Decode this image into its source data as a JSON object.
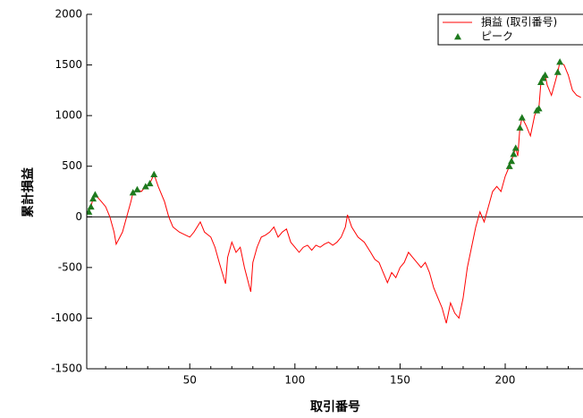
{
  "chart_data": {
    "type": "line",
    "x_label": "取引番号",
    "y_label": "累計損益",
    "xlim": [
      1,
      237
    ],
    "ylim": [
      -1500,
      2000
    ],
    "xticks": [
      50,
      100,
      150,
      200
    ],
    "xminorticks": [
      10,
      20,
      30,
      40,
      60,
      70,
      80,
      90,
      110,
      120,
      130,
      140,
      160,
      170,
      180,
      190,
      210,
      220,
      230
    ],
    "yticks": [
      -1500,
      -1000,
      -500,
      0,
      500,
      1000,
      1500,
      2000
    ],
    "zero_line": true,
    "legend": "upper right",
    "series": [
      {
        "name": "損益 (取引番号)",
        "color": "#ff0000",
        "style": "line",
        "x": [
          1,
          2,
          3,
          4,
          5,
          8,
          10,
          12,
          14,
          15,
          18,
          20,
          22,
          23,
          25,
          27,
          29,
          31,
          33,
          35,
          38,
          40,
          42,
          45,
          48,
          50,
          52,
          55,
          57,
          60,
          62,
          64,
          67,
          68,
          70,
          72,
          74,
          76,
          79,
          80,
          82,
          84,
          86,
          88,
          90,
          92,
          94,
          96,
          98,
          100,
          102,
          104,
          106,
          108,
          110,
          112,
          114,
          116,
          118,
          120,
          122,
          124,
          125,
          127,
          130,
          133,
          136,
          138,
          140,
          142,
          144,
          146,
          148,
          150,
          152,
          154,
          156,
          158,
          160,
          162,
          164,
          166,
          168,
          170,
          172,
          174,
          176,
          178,
          180,
          182,
          184,
          186,
          188,
          190,
          192,
          194,
          196,
          198,
          200,
          202,
          203,
          204,
          205,
          206,
          207,
          208,
          210,
          212,
          214,
          215,
          216,
          217,
          218,
          219,
          220,
          222,
          224,
          225,
          226,
          228,
          230,
          232,
          234,
          236
        ],
        "values": [
          30,
          50,
          100,
          180,
          220,
          150,
          100,
          0,
          -150,
          -270,
          -150,
          0,
          150,
          240,
          270,
          250,
          300,
          330,
          420,
          300,
          150,
          0,
          -100,
          -150,
          -180,
          -200,
          -150,
          -50,
          -150,
          -200,
          -300,
          -450,
          -660,
          -400,
          -250,
          -350,
          -300,
          -500,
          -740,
          -450,
          -300,
          -200,
          -180,
          -150,
          -100,
          -200,
          -150,
          -120,
          -250,
          -300,
          -350,
          -300,
          -280,
          -330,
          -280,
          -300,
          -270,
          -250,
          -280,
          -250,
          -200,
          -100,
          20,
          -100,
          -200,
          -250,
          -350,
          -420,
          -450,
          -550,
          -650,
          -550,
          -600,
          -500,
          -450,
          -350,
          -400,
          -450,
          -500,
          -450,
          -550,
          -700,
          -800,
          -900,
          -1050,
          -850,
          -950,
          -1000,
          -800,
          -500,
          -300,
          -100,
          50,
          -50,
          100,
          250,
          300,
          250,
          400,
          500,
          550,
          620,
          680,
          600,
          880,
          980,
          900,
          800,
          1000,
          1050,
          1070,
          1330,
          1370,
          1400,
          1300,
          1200,
          1350,
          1430,
          1530,
          1500,
          1400,
          1250,
          1200,
          1180
        ]
      },
      {
        "name": "ピーク",
        "color": "#1e7a1e",
        "style": "triangle",
        "x": [
          2,
          3,
          4,
          5,
          23,
          25,
          29,
          31,
          33,
          202,
          203,
          204,
          205,
          207,
          208,
          215,
          216,
          217,
          218,
          219,
          225,
          226
        ],
        "values": [
          50,
          100,
          180,
          220,
          240,
          270,
          300,
          330,
          420,
          500,
          550,
          620,
          680,
          880,
          980,
          1050,
          1070,
          1330,
          1370,
          1400,
          1430,
          1530
        ]
      }
    ]
  }
}
